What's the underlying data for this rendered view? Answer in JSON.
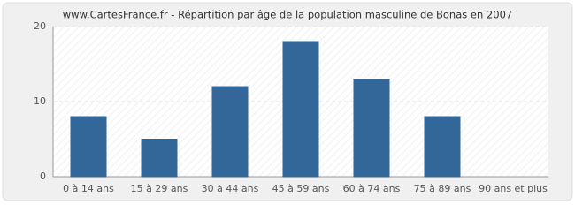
{
  "chart_data": {
    "type": "bar",
    "title": "www.CartesFrance.fr - Répartition par âge de la population masculine de Bonas en 2007",
    "categories": [
      "0 à 14 ans",
      "15 à 29 ans",
      "30 à 44 ans",
      "45 à 59 ans",
      "60 à 74 ans",
      "75 à 89 ans",
      "90 ans et plus"
    ],
    "values": [
      8,
      5,
      12,
      18,
      13,
      8,
      0
    ],
    "color": "#336699",
    "ylim": [
      0,
      20
    ],
    "yticks": [
      0,
      10,
      20
    ],
    "grid": true
  }
}
